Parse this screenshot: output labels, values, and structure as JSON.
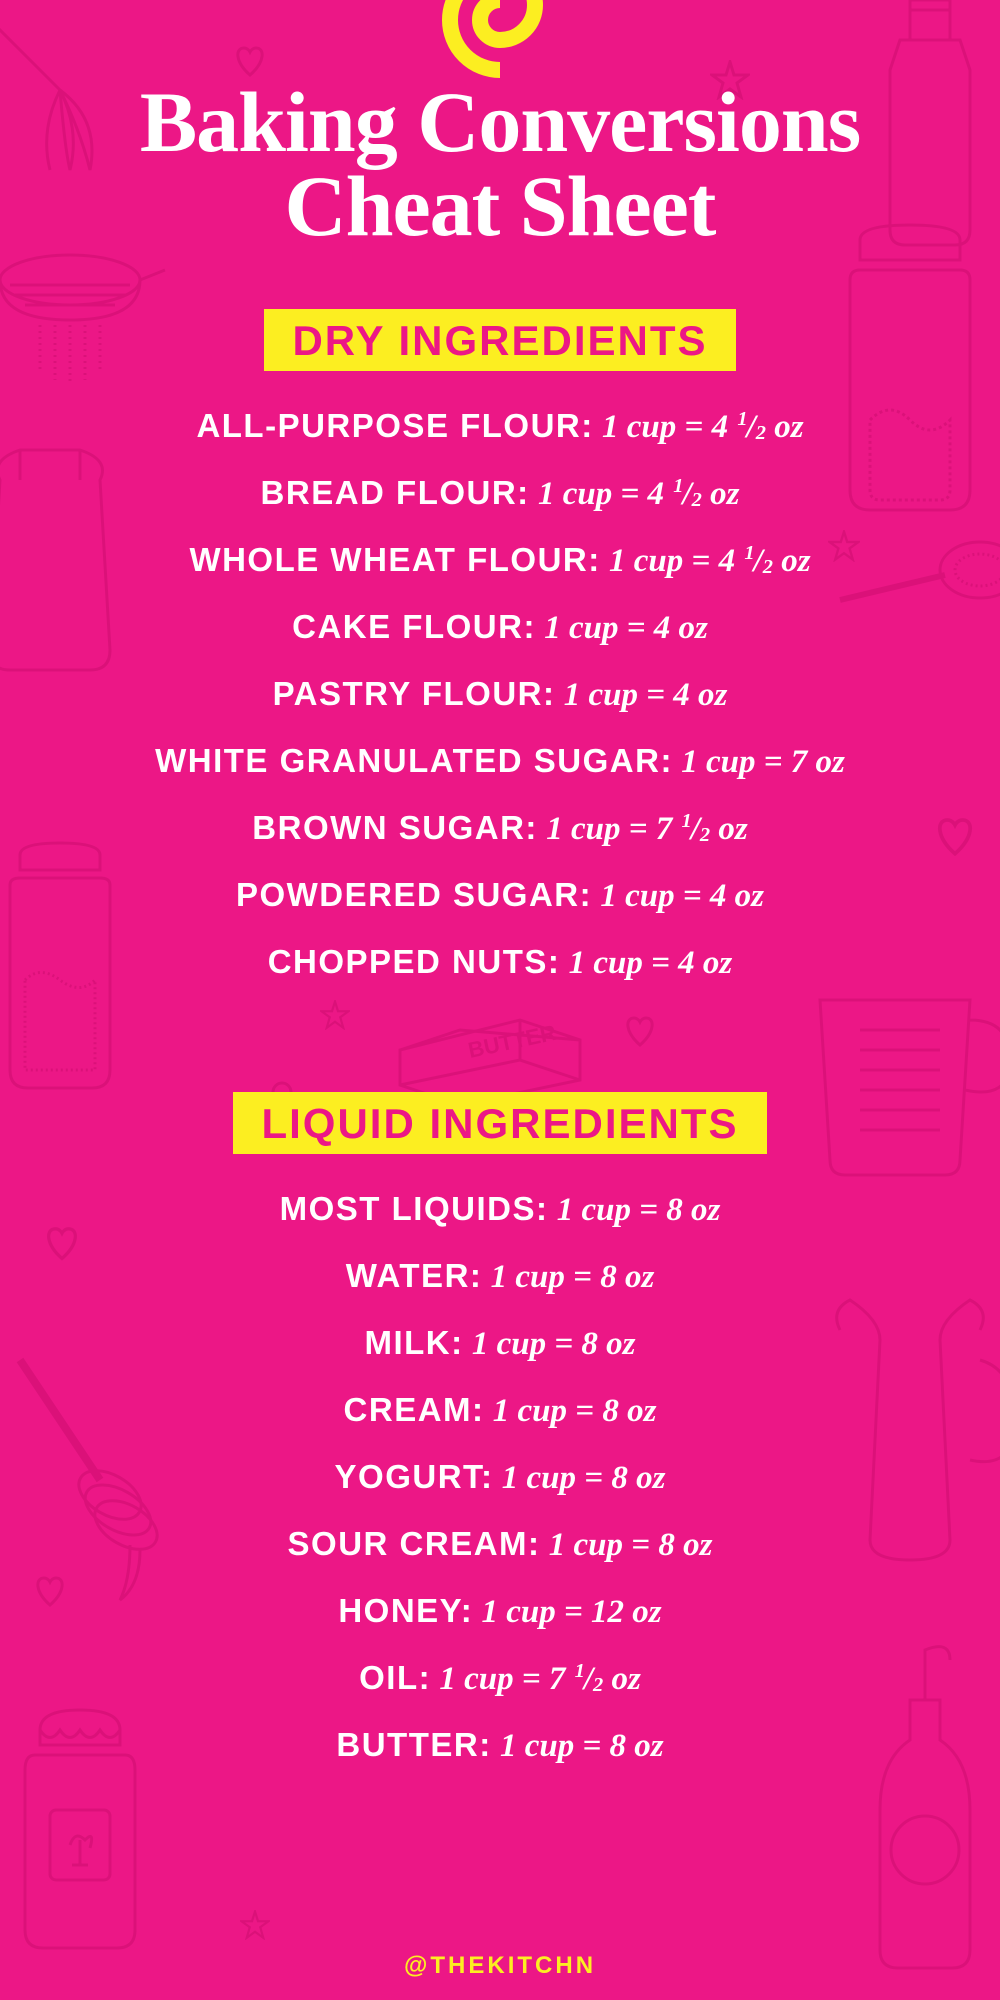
{
  "colors": {
    "background": "#ec1786",
    "title_text": "#ffffff",
    "body_text": "#ffffff",
    "highlight_bg": "#fcee21",
    "highlight_text": "#ec1786",
    "doodle_stroke": "#a00050",
    "handle_text": "#fcee21"
  },
  "typography": {
    "title_fontsize": 86,
    "section_label_fontsize": 42,
    "row_fontsize": 33,
    "handle_fontsize": 24
  },
  "title_line1": "Baking Conversions",
  "title_line2": "Cheat Sheet",
  "sections": [
    {
      "label": "DRY INGREDIENTS",
      "items": [
        {
          "name": "ALL-PURPOSE FLOUR:",
          "value": "1 cup = 4 ¹/₂ oz"
        },
        {
          "name": "BREAD FLOUR:",
          "value": "1 cup = 4 ¹/₂ oz"
        },
        {
          "name": "WHOLE WHEAT FLOUR:",
          "value": "1 cup = 4 ¹/₂ oz"
        },
        {
          "name": "CAKE FLOUR:",
          "value": "1 cup = 4 oz"
        },
        {
          "name": "PASTRY FLOUR:",
          "value": "1 cup = 4 oz"
        },
        {
          "name": "WHITE GRANULATED SUGAR:",
          "value": "1 cup = 7 oz"
        },
        {
          "name": "BROWN SUGAR:",
          "value": "1 cup = 7 ¹/₂ oz"
        },
        {
          "name": "POWDERED SUGAR:",
          "value": "1 cup = 4 oz"
        },
        {
          "name": "CHOPPED NUTS:",
          "value": "1 cup = 4 oz"
        }
      ]
    },
    {
      "label": "LIQUID INGREDIENTS",
      "items": [
        {
          "name": "MOST LIQUIDS:",
          "value": "1 cup = 8 oz"
        },
        {
          "name": "WATER:",
          "value": "1 cup = 8 oz"
        },
        {
          "name": "MILK:",
          "value": "1 cup = 8 oz"
        },
        {
          "name": "CREAM:",
          "value": "1 cup = 8 oz"
        },
        {
          "name": "YOGURT:",
          "value": "1 cup = 8 oz"
        },
        {
          "name": "SOUR CREAM:",
          "value": "1 cup = 8 oz"
        },
        {
          "name": "HONEY:",
          "value": "1 cup = 12 oz"
        },
        {
          "name": "OIL:",
          "value": "1 cup = 7 ¹/₂ oz"
        },
        {
          "name": "BUTTER:",
          "value": "1 cup = 8 oz"
        }
      ]
    }
  ],
  "handle": "@THEKITCHN"
}
